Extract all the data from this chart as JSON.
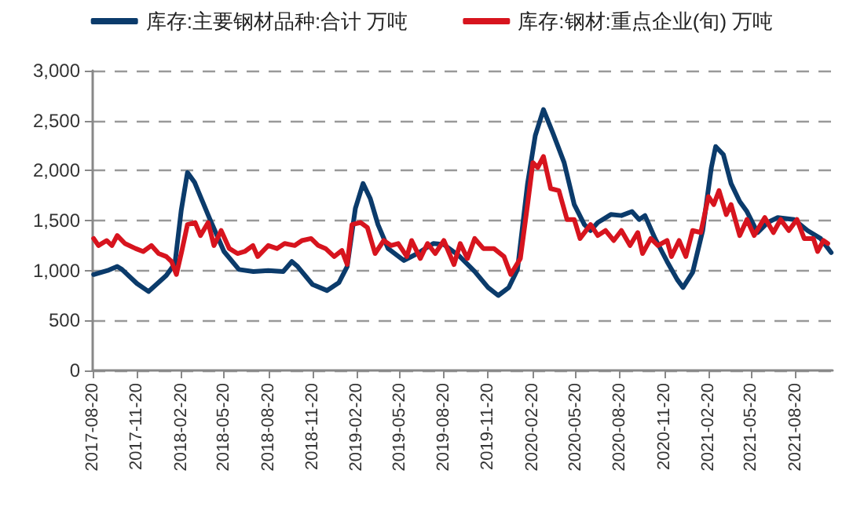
{
  "chart_data": {
    "type": "line",
    "legend": "top",
    "grid": "y",
    "marker": "none",
    "line_style": "solid",
    "xlim": [
      "2017-08-20",
      "2021-11-05"
    ],
    "xticks": [
      "2017-08-20",
      "2017-11-20",
      "2018-02-20",
      "2018-05-20",
      "2018-08-20",
      "2018-11-20",
      "2019-02-20",
      "2019-05-20",
      "2019-08-20",
      "2019-11-20",
      "2020-02-20",
      "2020-05-20",
      "2020-08-20",
      "2020-11-20",
      "2021-02-20",
      "2021-05-20",
      "2021-08-20"
    ],
    "ylim": [
      0,
      3000
    ],
    "yticks": [
      {
        "value": 0,
        "label": "0"
      },
      {
        "value": 500,
        "label": "500"
      },
      {
        "value": 1000,
        "label": "1,000"
      },
      {
        "value": 1500,
        "label": "1,500"
      },
      {
        "value": 2000,
        "label": "2,000"
      },
      {
        "value": 2500,
        "label": "2,500"
      },
      {
        "value": 3000,
        "label": "3,000"
      }
    ],
    "series": [
      {
        "name": "库存:主要钢材品种:合计 万吨",
        "color": "#0b3b6b",
        "x": [
          "2017-08-22",
          "2017-09-20",
          "2017-10-10",
          "2017-10-20",
          "2017-11-20",
          "2017-12-14",
          "2018-01-20",
          "2018-02-07",
          "2018-02-20",
          "2018-03-05",
          "2018-03-20",
          "2018-04-20",
          "2018-05-20",
          "2018-06-20",
          "2018-07-20",
          "2018-08-20",
          "2018-09-20",
          "2018-10-08",
          "2018-10-20",
          "2018-11-20",
          "2018-12-20",
          "2019-01-14",
          "2019-01-31",
          "2019-02-17",
          "2019-03-05",
          "2019-03-20",
          "2019-04-05",
          "2019-04-26",
          "2019-05-29",
          "2019-06-26",
          "2019-07-29",
          "2019-08-20",
          "2019-09-20",
          "2019-10-23",
          "2019-11-20",
          "2019-12-11",
          "2020-01-02",
          "2020-01-20",
          "2020-02-10",
          "2020-02-26",
          "2020-03-14",
          "2020-04-03",
          "2020-04-26",
          "2020-05-17",
          "2020-06-07",
          "2020-06-20",
          "2020-07-05",
          "2020-08-01",
          "2020-08-23",
          "2020-09-14",
          "2020-09-29",
          "2020-10-11",
          "2020-11-01",
          "2020-11-26",
          "2020-12-17",
          "2020-12-29",
          "2021-01-18",
          "2021-02-08",
          "2021-02-26",
          "2021-03-07",
          "2021-03-23",
          "2021-04-08",
          "2021-04-26",
          "2021-05-11",
          "2021-06-02",
          "2021-06-23",
          "2021-07-14",
          "2021-08-17",
          "2021-09-14",
          "2021-10-11",
          "2021-11-02"
        ],
        "values": [
          960,
          1000,
          1040,
          1010,
          870,
          790,
          950,
          1070,
          1600,
          1980,
          1880,
          1520,
          1190,
          1010,
          990,
          1000,
          990,
          1090,
          1040,
          860,
          800,
          880,
          1040,
          1620,
          1870,
          1720,
          1460,
          1220,
          1100,
          1170,
          1270,
          1260,
          1150,
          990,
          830,
          750,
          830,
          1010,
          1870,
          2350,
          2610,
          2370,
          2080,
          1660,
          1460,
          1400,
          1480,
          1560,
          1550,
          1590,
          1510,
          1550,
          1320,
          1090,
          910,
          830,
          980,
          1400,
          2030,
          2240,
          2160,
          1870,
          1690,
          1590,
          1380,
          1480,
          1530,
          1510,
          1400,
          1320,
          1180
        ]
      },
      {
        "name": "库存:钢材:重点企业(旬) 万吨",
        "color": "#d7141e",
        "x": [
          "2017-08-22",
          "2017-09-01",
          "2017-09-18",
          "2017-09-29",
          "2017-10-10",
          "2017-10-26",
          "2017-11-17",
          "2017-12-03",
          "2017-12-20",
          "2018-01-04",
          "2018-01-20",
          "2018-01-31",
          "2018-02-10",
          "2018-02-21",
          "2018-03-05",
          "2018-03-21",
          "2018-04-01",
          "2018-04-17",
          "2018-04-29",
          "2018-05-14",
          "2018-05-31",
          "2018-06-17",
          "2018-07-02",
          "2018-07-19",
          "2018-07-29",
          "2018-08-20",
          "2018-09-07",
          "2018-09-23",
          "2018-10-14",
          "2018-10-29",
          "2018-11-17",
          "2018-12-02",
          "2018-12-17",
          "2019-01-04",
          "2019-01-20",
          "2019-01-31",
          "2019-02-10",
          "2019-02-28",
          "2019-03-14",
          "2019-03-30",
          "2019-04-17",
          "2019-05-02",
          "2019-05-17",
          "2019-06-04",
          "2019-06-14",
          "2019-07-02",
          "2019-07-17",
          "2019-08-02",
          "2019-08-20",
          "2019-09-10",
          "2019-09-23",
          "2019-10-08",
          "2019-10-23",
          "2019-11-10",
          "2019-12-02",
          "2019-12-23",
          "2020-01-06",
          "2020-01-26",
          "2020-02-10",
          "2020-02-21",
          "2020-03-02",
          "2020-03-14",
          "2020-03-29",
          "2020-04-15",
          "2020-05-02",
          "2020-05-17",
          "2020-05-29",
          "2020-06-20",
          "2020-07-05",
          "2020-07-21",
          "2020-08-07",
          "2020-08-23",
          "2020-09-10",
          "2020-09-26",
          "2020-10-06",
          "2020-10-23",
          "2020-11-07",
          "2020-11-26",
          "2020-12-05",
          "2020-12-21",
          "2021-01-04",
          "2021-01-18",
          "2021-02-04",
          "2021-02-20",
          "2021-03-03",
          "2021-03-14",
          "2021-03-29",
          "2021-04-08",
          "2021-04-26",
          "2021-05-11",
          "2021-05-26",
          "2021-06-17",
          "2021-07-05",
          "2021-07-20",
          "2021-08-06",
          "2021-08-23",
          "2021-09-07",
          "2021-09-26",
          "2021-10-05",
          "2021-10-17",
          "2021-10-26"
        ],
        "values": [
          1320,
          1250,
          1300,
          1250,
          1350,
          1270,
          1220,
          1190,
          1250,
          1170,
          1140,
          1090,
          960,
          1190,
          1460,
          1480,
          1350,
          1480,
          1250,
          1400,
          1220,
          1170,
          1190,
          1250,
          1140,
          1250,
          1220,
          1270,
          1250,
          1300,
          1320,
          1250,
          1220,
          1140,
          1200,
          1060,
          1460,
          1480,
          1430,
          1170,
          1300,
          1250,
          1270,
          1140,
          1300,
          1120,
          1270,
          1170,
          1300,
          1060,
          1270,
          1120,
          1320,
          1220,
          1220,
          1140,
          960,
          1120,
          1660,
          2080,
          2030,
          2140,
          1820,
          1800,
          1510,
          1510,
          1320,
          1460,
          1350,
          1400,
          1300,
          1400,
          1250,
          1380,
          1170,
          1320,
          1250,
          1300,
          1140,
          1300,
          1140,
          1400,
          1380,
          1740,
          1660,
          1800,
          1560,
          1660,
          1350,
          1510,
          1350,
          1530,
          1380,
          1510,
          1400,
          1510,
          1320,
          1320,
          1190,
          1300,
          1270
        ]
      }
    ]
  }
}
